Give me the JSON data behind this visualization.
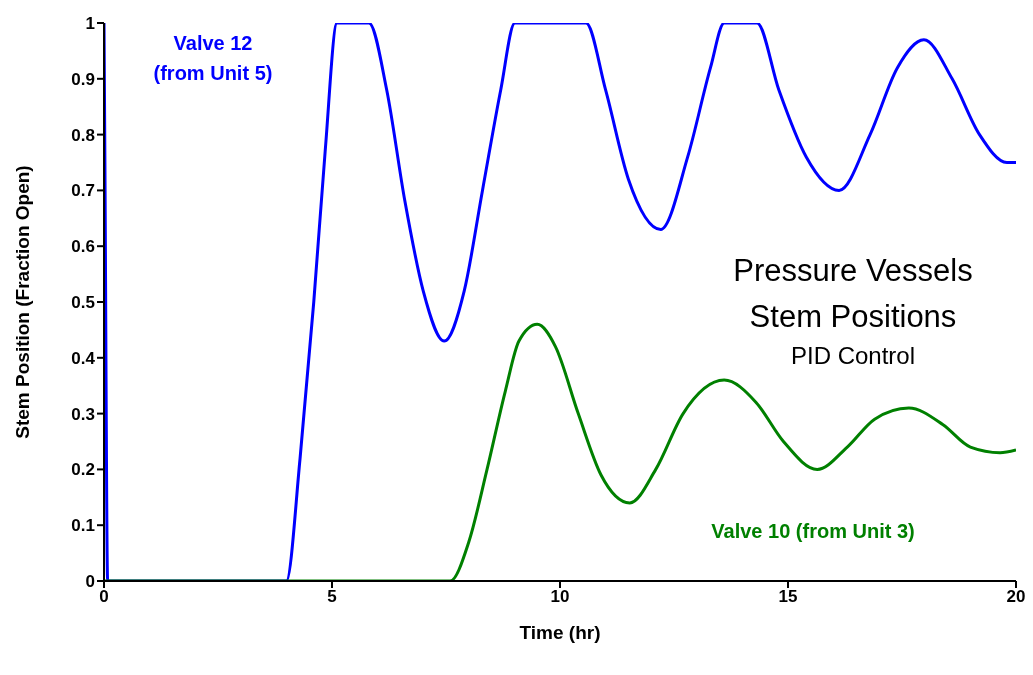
{
  "chart_data": {
    "type": "line",
    "title": "Pressure Vessels Stem Positions",
    "subtitle": "PID Control",
    "xlabel": "Time (hr)",
    "ylabel": "Stem Position (Fraction Open)",
    "xlim": [
      0,
      20
    ],
    "xticks": [
      0,
      5,
      10,
      15,
      20
    ],
    "ylim": [
      0,
      1
    ],
    "yticks": [
      0,
      0.1,
      0.2,
      0.3,
      0.4,
      0.5,
      0.6,
      0.7,
      0.8,
      0.9,
      1
    ],
    "grid": false,
    "series": [
      {
        "name": "Valve 12\n(from Unit 5)",
        "color": "#0000ff",
        "x": [
          0,
          0.02,
          0.08,
          4.0,
          4.3,
          4.6,
          4.85,
          5.11,
          5.81,
          6.2,
          6.6,
          7.0,
          7.46,
          7.9,
          8.3,
          8.7,
          9.01,
          10.57,
          11.0,
          11.5,
          12.21,
          12.8,
          13.3,
          13.6,
          14.32,
          14.8,
          15.4,
          16.12,
          16.8,
          17.4,
          17.98,
          18.6,
          19.2,
          19.8,
          20
        ],
        "values": [
          1,
          0.75,
          0,
          0,
          0.22,
          0.5,
          0.77,
          1,
          1,
          0.88,
          0.68,
          0.52,
          0.43,
          0.52,
          0.7,
          0.88,
          1,
          1,
          0.88,
          0.72,
          0.63,
          0.76,
          0.92,
          1,
          1,
          0.88,
          0.76,
          0.7,
          0.8,
          0.92,
          0.97,
          0.9,
          0.8,
          0.75,
          0.75
        ]
      },
      {
        "name": "Valve 10 (from Unit 3)",
        "color": "#008000",
        "x": [
          0,
          7.59,
          8.0,
          8.4,
          8.8,
          9.1,
          9.5,
          9.9,
          10.4,
          10.9,
          11.53,
          12.1,
          12.7,
          13.6,
          14.3,
          14.9,
          15.64,
          16.3,
          16.9,
          17.65,
          18.4,
          19.0,
          19.65,
          20
        ],
        "values": [
          0,
          0,
          0.07,
          0.2,
          0.34,
          0.43,
          0.46,
          0.42,
          0.3,
          0.19,
          0.14,
          0.2,
          0.3,
          0.36,
          0.32,
          0.25,
          0.2,
          0.24,
          0.29,
          0.31,
          0.28,
          0.24,
          0.23,
          0.235
        ]
      }
    ]
  }
}
